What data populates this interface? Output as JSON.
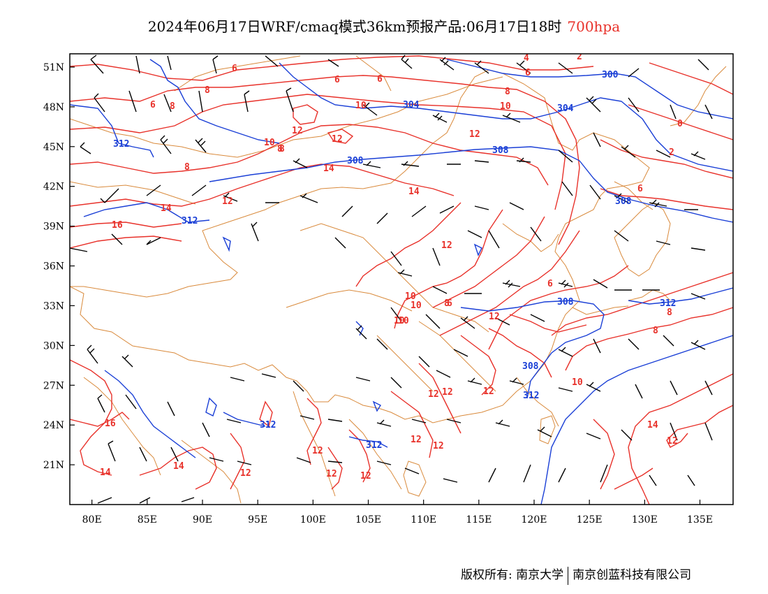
{
  "title": {
    "main": "2024年06月17日WRF/cmaq模式36km预报产品:06月17日18时",
    "level": "700hpa"
  },
  "map": {
    "lon_range": [
      78,
      138
    ],
    "lat_range": [
      18,
      52
    ],
    "lon_ticks": [
      "80E",
      "85E",
      "90E",
      "95E",
      "100E",
      "105E",
      "110E",
      "115E",
      "120E",
      "125E",
      "130E",
      "135E"
    ],
    "lat_ticks": [
      "51N",
      "48N",
      "45N",
      "42N",
      "39N",
      "36N",
      "33N",
      "30N",
      "27N",
      "24N",
      "21N"
    ],
    "colors": {
      "temperature": "#e8312a",
      "height": "#1a3fd6",
      "border": "#d98a3c",
      "wind": "#000000"
    },
    "temperature_labels": [
      "6",
      "8",
      "6",
      "6",
      "8",
      "6",
      "6",
      "8",
      "10",
      "10",
      "12",
      "12",
      "12",
      "14",
      "14",
      "8",
      "10",
      "8",
      "14",
      "12",
      "16",
      "14",
      "12",
      "12",
      "10",
      "10",
      "8",
      "6",
      "8",
      "10",
      "8",
      "12",
      "12",
      "12",
      "12",
      "12",
      "12",
      "12",
      "16",
      "14",
      "14",
      "12",
      "12",
      "10",
      "12",
      "4",
      "2",
      "0",
      "2",
      "6",
      "6",
      "8",
      "10"
    ],
    "height_labels": [
      "312",
      "308",
      "304",
      "300",
      "304",
      "308",
      "308",
      "312",
      "308",
      "308",
      "312",
      "312",
      "312",
      "312"
    ]
  },
  "footer": {
    "left": "版权所有: 南京大学",
    "right": "南京创蓝科技有限公司"
  }
}
